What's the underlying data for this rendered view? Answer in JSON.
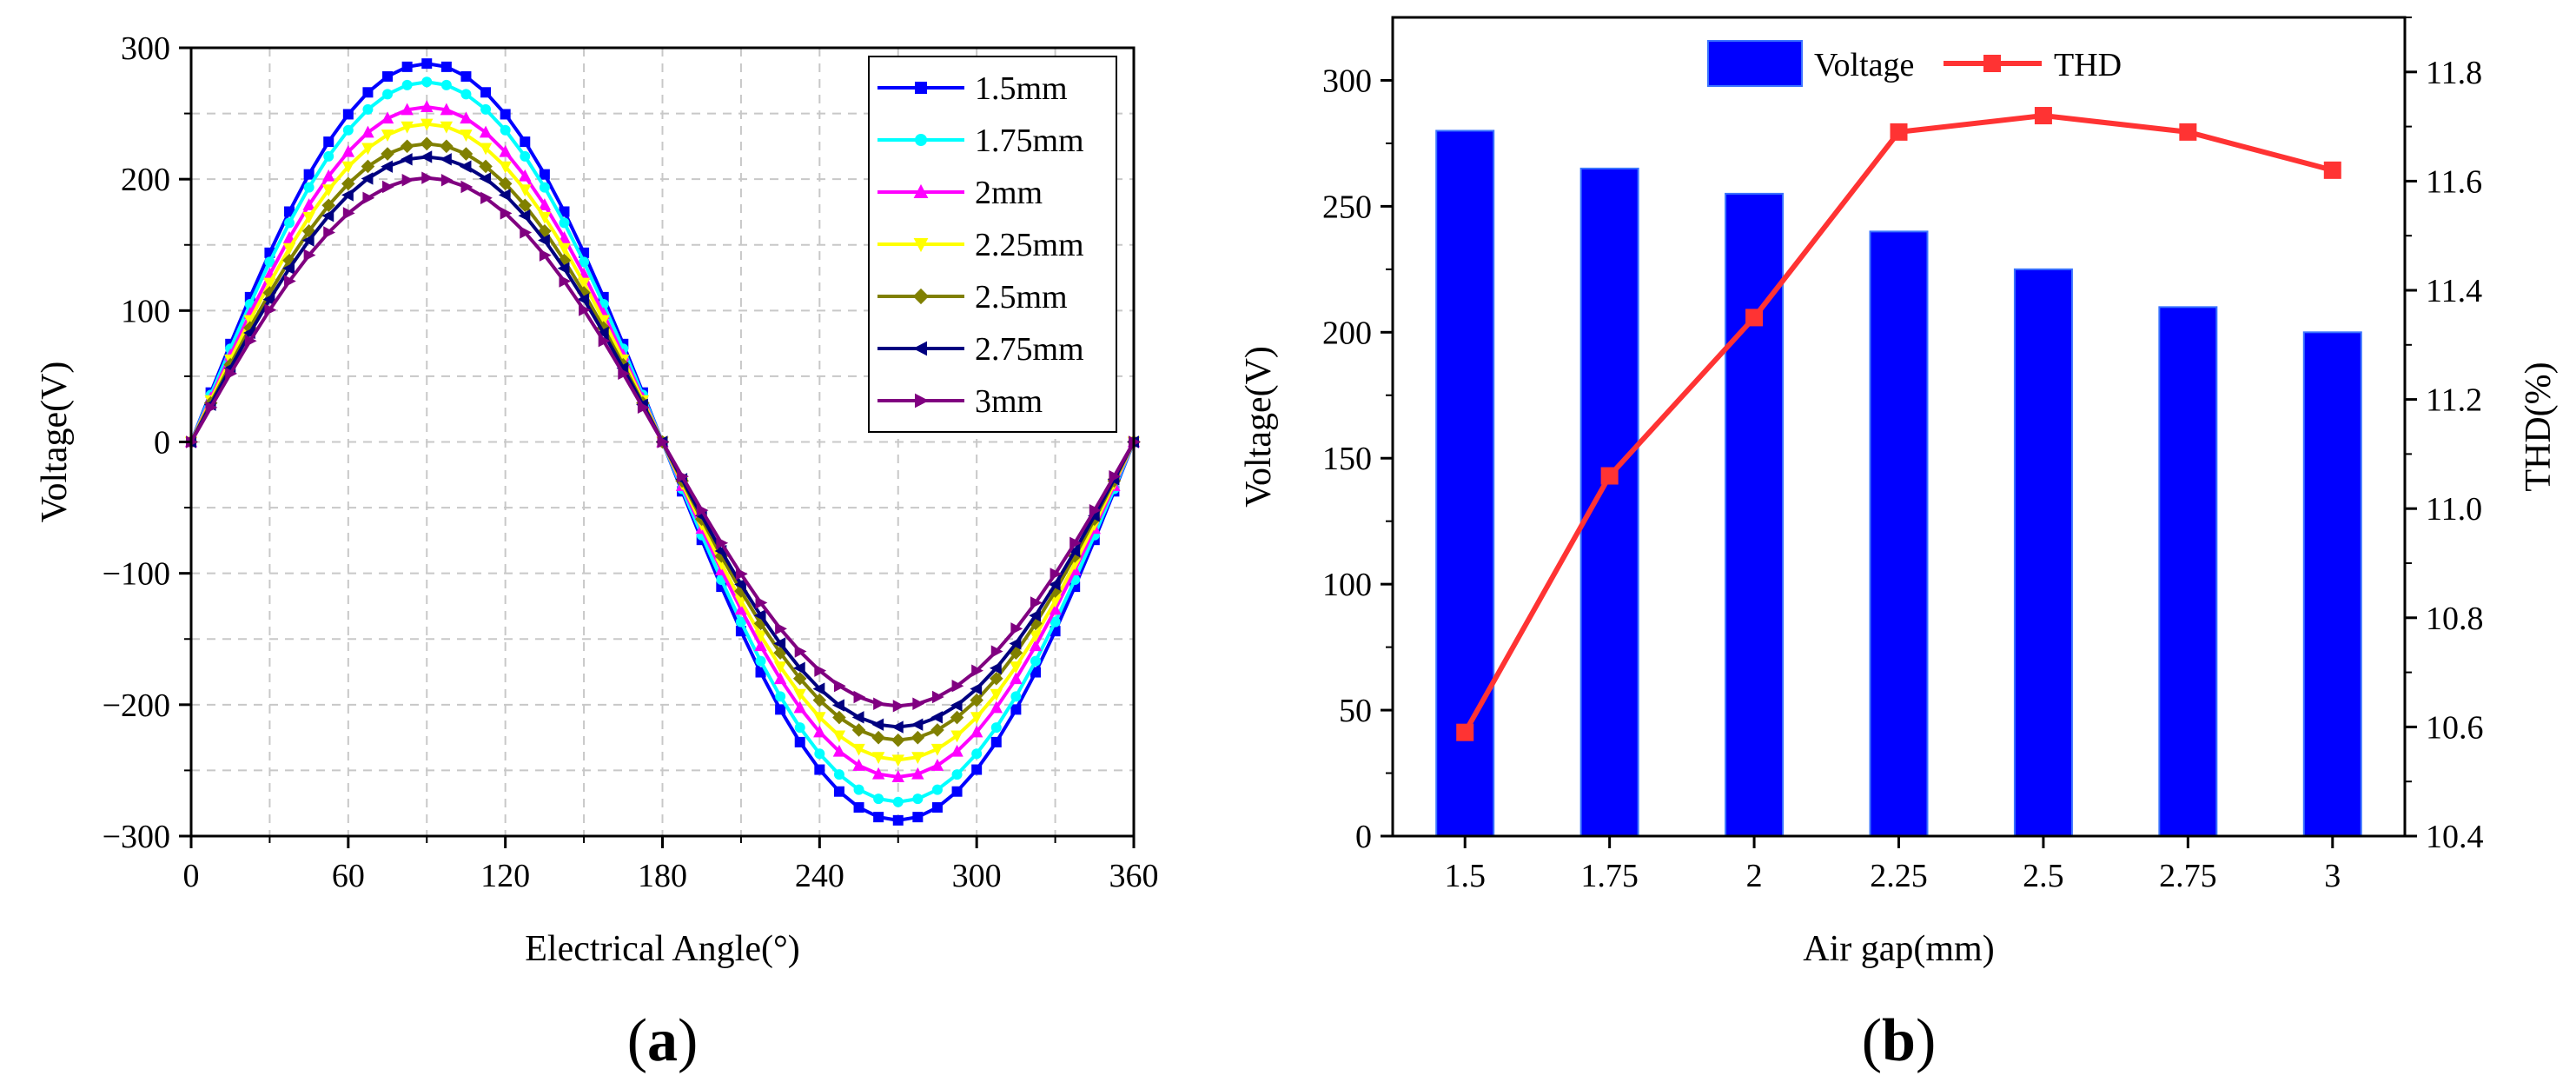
{
  "chart_data": [
    {
      "type": "line",
      "xlabel": "Electrical Angle(°)",
      "ylabel": "Voltage(V)",
      "xlim": [
        0,
        360
      ],
      "ylim": [
        -300,
        300
      ],
      "xticks": [
        "0",
        "60",
        "120",
        "180",
        "240",
        "300",
        "360"
      ],
      "yticks": [
        "−300",
        "−200",
        "−100",
        "0",
        "100",
        "200",
        "300"
      ],
      "grid": true,
      "legend_position": "top-right",
      "panel_label": "(a)",
      "panel_label_letter": "a",
      "x": [
        0,
        7.5,
        15,
        22.5,
        30,
        37.5,
        45,
        52.5,
        60,
        67.5,
        75,
        82.5,
        90,
        97.5,
        105,
        112.5,
        120,
        127.5,
        135,
        142.5,
        150,
        157.5,
        165,
        172.5,
        180,
        187.5,
        195,
        202.5,
        210,
        217.5,
        225,
        232.5,
        240,
        247.5,
        255,
        262.5,
        270,
        277.5,
        285,
        292.5,
        300,
        307.5,
        315,
        322.5,
        330,
        337.5,
        345,
        352.5,
        360
      ],
      "waveform": "sine",
      "series": [
        {
          "name": "1.5mm",
          "amplitude": 288,
          "color": "#0000FF",
          "marker": "square"
        },
        {
          "name": "1.75mm",
          "amplitude": 274,
          "color": "#00FFFF",
          "marker": "circle"
        },
        {
          "name": "2mm",
          "amplitude": 255,
          "color": "#FF00FF",
          "marker": "triangle-up"
        },
        {
          "name": "2.25mm",
          "amplitude": 242,
          "color": "#FFFF00",
          "marker": "triangle-down"
        },
        {
          "name": "2.5mm",
          "amplitude": 227,
          "color": "#808000",
          "marker": "diamond"
        },
        {
          "name": "2.75mm",
          "amplitude": 217,
          "color": "#000080",
          "marker": "triangle-left"
        },
        {
          "name": "3mm",
          "amplitude": 201,
          "color": "#800080",
          "marker": "triangle-right"
        }
      ]
    },
    {
      "type": "bar",
      "categories": [
        "1.5",
        "1.75",
        "2",
        "2.25",
        "2.5",
        "2.75",
        "3"
      ],
      "xlabel": "Air gap(mm)",
      "ylabel": "Voltage(V)",
      "ylabel_right": "THD(%)",
      "ylim": [
        0,
        325
      ],
      "ylim_right": [
        10.4,
        11.9
      ],
      "yticks": [
        "0",
        "50",
        "100",
        "150",
        "200",
        "250",
        "300"
      ],
      "yticks_right": [
        "10.4",
        "10.6",
        "10.8",
        "11.0",
        "11.2",
        "11.4",
        "11.6",
        "11.8"
      ],
      "legend_position": "top",
      "panel_label": "(b)",
      "panel_label_letter": "b",
      "series": [
        {
          "name": "Voltage",
          "type": "bar",
          "axis": "left",
          "color": "#0000FF",
          "values": [
            280,
            265,
            255,
            240,
            225,
            210,
            200
          ]
        },
        {
          "name": "THD",
          "type": "line",
          "axis": "right",
          "color": "#FF3333",
          "marker": "square",
          "values": [
            10.59,
            11.06,
            11.35,
            11.69,
            11.72,
            11.69,
            11.62
          ]
        }
      ]
    }
  ]
}
